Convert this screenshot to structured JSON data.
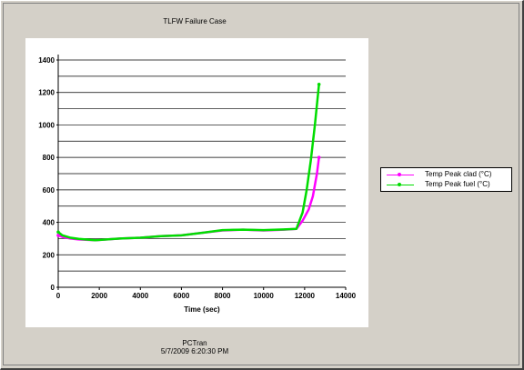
{
  "window": {
    "title": "TLFW Failure Case"
  },
  "footer": {
    "app": "PCTran",
    "datetime": "5/7/2009 6:20:30 PM"
  },
  "chart_data": {
    "type": "line",
    "title": "TLFW Failure Case",
    "xlabel": "Time (sec)",
    "ylabel": "",
    "xlim": [
      0,
      14000
    ],
    "ylim": [
      0,
      1400
    ],
    "x_ticks": [
      "0",
      "2000",
      "4000",
      "6000",
      "8000",
      "10000",
      "12000",
      "14000"
    ],
    "y_ticks": [
      "0",
      "200",
      "400",
      "600",
      "800",
      "1000",
      "1200",
      "1400"
    ],
    "grid": "horizontal",
    "legend_position": "right",
    "series": [
      {
        "name": "Temp Peak clad (°C)",
        "color": "#ff00ff",
        "x": [
          0,
          200,
          600,
          1000,
          1800,
          3000,
          4000,
          5000,
          6000,
          7000,
          8000,
          9000,
          10000,
          11000,
          11600,
          11900,
          12200,
          12400,
          12600,
          12700
        ],
        "y": [
          320,
          310,
          300,
          295,
          290,
          300,
          305,
          315,
          320,
          335,
          350,
          355,
          350,
          355,
          360,
          410,
          480,
          560,
          700,
          800
        ]
      },
      {
        "name": "Temp Peak fuel (°C)",
        "color": "#00dd00",
        "x": [
          0,
          200,
          600,
          1000,
          1800,
          3000,
          4000,
          5000,
          6000,
          7000,
          8000,
          9000,
          10000,
          11000,
          11600,
          11900,
          12100,
          12300,
          12500,
          12700
        ],
        "y": [
          340,
          320,
          305,
          298,
          290,
          300,
          305,
          315,
          320,
          335,
          352,
          355,
          352,
          356,
          360,
          460,
          600,
          780,
          1000,
          1250
        ]
      }
    ]
  }
}
